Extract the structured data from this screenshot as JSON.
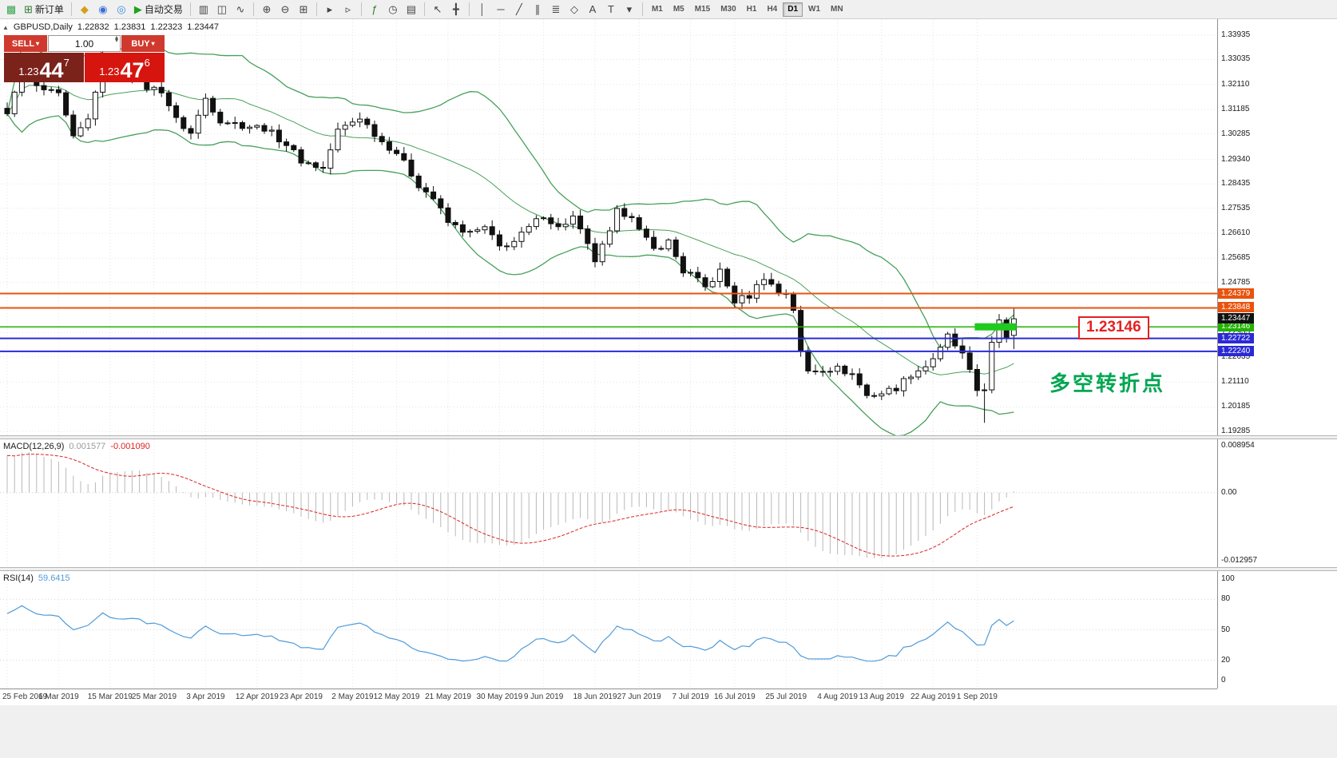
{
  "window": {
    "bg": "#f0f0f0",
    "chart_bg": "#ffffff"
  },
  "colors": {
    "level_orange": "#e8530e",
    "level_green": "#22b200",
    "level_blue": "#2a2ad4",
    "bollinger": "#46a05a",
    "macd_hist": "#b8b8b8",
    "macd_signal": "#dd2222",
    "rsi_line": "#4f9bd9",
    "current_tag": "#111111",
    "callout_red": "#e32222",
    "note_green": "#00a651",
    "sell_panel": "#7b221b",
    "buy_panel": "#d6150f",
    "trade_button": "#d03a2e",
    "highlight_green": "#1ecb1e"
  },
  "toolbar": {
    "groups": [
      {
        "items": [
          {
            "name": "terminal-icon",
            "glyph": "▩",
            "color": "#3aa655"
          },
          {
            "name": "new-order-button",
            "glyph": "⊞",
            "glyph_color": "#2f7d32",
            "label": "新订单"
          }
        ]
      },
      {
        "items": [
          {
            "name": "layouts-icon",
            "glyph": "◆",
            "color": "#d4a017"
          },
          {
            "name": "data-window-icon",
            "glyph": "◉",
            "color": "#3a6fd8"
          },
          {
            "name": "refresh-icon",
            "glyph": "◎",
            "color": "#3a8fd8"
          },
          {
            "name": "autotrading-button",
            "glyph": "▶",
            "glyph_color": "#21a121",
            "label": "自动交易"
          }
        ]
      },
      {
        "items": [
          {
            "name": "bar-chart-icon",
            "glyph": "▥"
          },
          {
            "name": "candlestick-chart-icon",
            "glyph": "◫"
          },
          {
            "name": "line-chart-icon",
            "glyph": "∿"
          }
        ]
      },
      {
        "items": [
          {
            "name": "zoom-in-icon",
            "glyph": "⊕"
          },
          {
            "name": "zoom-out-icon",
            "glyph": "⊖"
          },
          {
            "name": "tile-windows-icon",
            "glyph": "⊞"
          }
        ]
      },
      {
        "items": [
          {
            "name": "auto-scroll-icon",
            "glyph": "▸"
          },
          {
            "name": "chart-shift-icon",
            "glyph": "▹"
          }
        ]
      },
      {
        "items": [
          {
            "name": "indicators-icon",
            "glyph": "ƒ",
            "color": "#2f7d32"
          },
          {
            "name": "periods-icon",
            "glyph": "◷"
          },
          {
            "name": "templates-icon",
            "glyph": "▤"
          }
        ]
      },
      {
        "items": [
          {
            "name": "cursor-icon",
            "glyph": "↖"
          },
          {
            "name": "crosshair-icon",
            "glyph": "╋"
          }
        ]
      },
      {
        "items": [
          {
            "name": "vertical-line-icon",
            "glyph": "│"
          },
          {
            "name": "horizontal-line-icon",
            "glyph": "─"
          },
          {
            "name": "trendline-icon",
            "glyph": "╱"
          },
          {
            "name": "equidistant-channel-icon",
            "glyph": "∥"
          },
          {
            "name": "fibonacci-icon",
            "glyph": "≣"
          },
          {
            "name": "shapes-icon",
            "glyph": "◇"
          },
          {
            "name": "text-icon",
            "glyph": "A"
          },
          {
            "name": "text-label-icon",
            "glyph": "T"
          },
          {
            "name": "arrow-tools-icon",
            "glyph": "▾"
          }
        ]
      }
    ],
    "timeframes": {
      "items": [
        "M1",
        "M5",
        "M15",
        "M30",
        "H1",
        "H4",
        "D1",
        "W1",
        "MN"
      ],
      "active": "D1"
    },
    "overflow_glyph": "»"
  },
  "chart_header": {
    "symbol": "GBPUSD,Daily",
    "open": "1.22832",
    "high": "1.23831",
    "low": "1.22323",
    "close": "1.23447"
  },
  "trade_panel": {
    "sell_label": "SELL",
    "buy_label": "BUY",
    "volume": "1.00",
    "sell_price": {
      "prefix": "1.23",
      "big": "44",
      "sup": "7"
    },
    "buy_price": {
      "prefix": "1.23",
      "big": "47",
      "sup": "6"
    }
  },
  "chart_data": {
    "type": "candlestick",
    "symbol": "GBPUSD",
    "timeframe": "Daily",
    "last_candle": {
      "o": 1.22832,
      "h": 1.23831,
      "l": 1.22323,
      "c": 1.23447
    },
    "candle_count": 138,
    "close_anchors": [
      [
        0,
        1.3095
      ],
      [
        2,
        1.329
      ],
      [
        4,
        1.32
      ],
      [
        7,
        1.317
      ],
      [
        9,
        1.301
      ],
      [
        11,
        1.308
      ],
      [
        13,
        1.33
      ],
      [
        15,
        1.323
      ],
      [
        17,
        1.326
      ],
      [
        19,
        1.32
      ],
      [
        21,
        1.319
      ],
      [
        23,
        1.308
      ],
      [
        25,
        1.303
      ],
      [
        27,
        1.316
      ],
      [
        29,
        1.308
      ],
      [
        32,
        1.306
      ],
      [
        35,
        1.305
      ],
      [
        38,
        1.299
      ],
      [
        40,
        1.293
      ],
      [
        43,
        1.29
      ],
      [
        45,
        1.304
      ],
      [
        48,
        1.309
      ],
      [
        51,
        1.3
      ],
      [
        53,
        1.296
      ],
      [
        56,
        1.284
      ],
      [
        58,
        1.279
      ],
      [
        60,
        1.27
      ],
      [
        63,
        1.266
      ],
      [
        65,
        1.268
      ],
      [
        67,
        1.261
      ],
      [
        69,
        1.263
      ],
      [
        71,
        1.268
      ],
      [
        73,
        1.273
      ],
      [
        75,
        1.268
      ],
      [
        77,
        1.272
      ],
      [
        80,
        1.256
      ],
      [
        82,
        1.266
      ],
      [
        83,
        1.274
      ],
      [
        85,
        1.273
      ],
      [
        86,
        1.267
      ],
      [
        88,
        1.26
      ],
      [
        90,
        1.263
      ],
      [
        92,
        1.252
      ],
      [
        93,
        1.251
      ],
      [
        95,
        1.246
      ],
      [
        97,
        1.252
      ],
      [
        99,
        1.241
      ],
      [
        101,
        1.243
      ],
      [
        103,
        1.25
      ],
      [
        105,
        1.244
      ],
      [
        106,
        1.244
      ],
      [
        107,
        1.238
      ],
      [
        108,
        1.222
      ],
      [
        109,
        1.215
      ],
      [
        111,
        1.216
      ],
      [
        113,
        1.216
      ],
      [
        115,
        1.214
      ],
      [
        117,
        1.206
      ],
      [
        119,
        1.207
      ],
      [
        121,
        1.209
      ],
      [
        123,
        1.214
      ],
      [
        125,
        1.217
      ],
      [
        127,
        1.223
      ],
      [
        128,
        1.228
      ],
      [
        130,
        1.221
      ],
      [
        132,
        1.208
      ],
      [
        133,
        1.209
      ],
      [
        134,
        1.225
      ],
      [
        135,
        1.233
      ],
      [
        136,
        1.228
      ],
      [
        137,
        1.23447
      ]
    ],
    "wick_overrides": [
      {
        "i": 13,
        "high": 1.338
      },
      {
        "i": 133,
        "low": 1.196
      }
    ],
    "price_scale_labels": [
      "1.33935",
      "1.33035",
      "1.32110",
      "1.31185",
      "1.30285",
      "1.29340",
      "1.28435",
      "1.27535",
      "1.26610",
      "1.25685",
      "1.24785",
      "1.23860",
      "1.22935",
      "1.22035",
      "1.21110",
      "1.20185",
      "1.19285"
    ],
    "date_ticks": [
      {
        "i": 0,
        "label": "25 Feb 2019"
      },
      {
        "i": 7,
        "label": "6 Mar 2019"
      },
      {
        "i": 14,
        "label": "15 Mar 2019"
      },
      {
        "i": 20,
        "label": "25 Mar 2019"
      },
      {
        "i": 27,
        "label": "3 Apr 2019"
      },
      {
        "i": 34,
        "label": "12 Apr 2019"
      },
      {
        "i": 40,
        "label": "23 Apr 2019"
      },
      {
        "i": 47,
        "label": "2 May 2019"
      },
      {
        "i": 53,
        "label": "12 May 2019"
      },
      {
        "i": 60,
        "label": "21 May 2019"
      },
      {
        "i": 67,
        "label": "30 May 2019"
      },
      {
        "i": 73,
        "label": "9 Jun 2019"
      },
      {
        "i": 80,
        "label": "18 Jun 2019"
      },
      {
        "i": 86,
        "label": "27 Jun 2019"
      },
      {
        "i": 93,
        "label": "7 Jul 2019"
      },
      {
        "i": 99,
        "label": "16 Jul 2019"
      },
      {
        "i": 106,
        "label": "25 Jul 2019"
      },
      {
        "i": 113,
        "label": "4 Aug 2019"
      },
      {
        "i": 119,
        "label": "13 Aug 2019"
      },
      {
        "i": 126,
        "label": "22 Aug 2019"
      },
      {
        "i": 132,
        "label": "1 Sep 2019"
      }
    ],
    "levels": [
      {
        "price": 1.24379,
        "label": "1.24379",
        "color": "#e8530e",
        "width": 2
      },
      {
        "price": 1.23848,
        "label": "1.23848",
        "color": "#e8530e",
        "width": 2
      },
      {
        "price": 1.23146,
        "label": "1.23146",
        "color": "#22b200",
        "width": 1.5
      },
      {
        "price": 1.22722,
        "label": "1.22722",
        "color": "#2a2ad4",
        "width": 2
      },
      {
        "price": 1.2224,
        "label": "1.22240",
        "color": "#2a2ad4",
        "width": 2
      }
    ],
    "current_tag": {
      "label": "1.23447",
      "price": 1.23447
    },
    "highlight_segment": {
      "price": 1.23146,
      "from": 132,
      "to": 137,
      "thickness": 9
    },
    "annotations": {
      "callout_text": "1.23146",
      "note_text": "多空转折点"
    },
    "indicators": {
      "bollinger": {
        "period": 20,
        "deviation": 2
      },
      "macd": {
        "label": "MACD(12,26,9)",
        "value_main": "0.001577",
        "value_signal": "-0.001090",
        "scale_max": "0.008954",
        "scale_zero": "0.00",
        "scale_min": "-0.012957"
      },
      "rsi": {
        "label": "RSI(14)",
        "value": "59.6415",
        "scale_labels": [
          "100",
          "80",
          "50",
          "20",
          "0"
        ],
        "levels": [
          80,
          50,
          20
        ]
      }
    }
  }
}
